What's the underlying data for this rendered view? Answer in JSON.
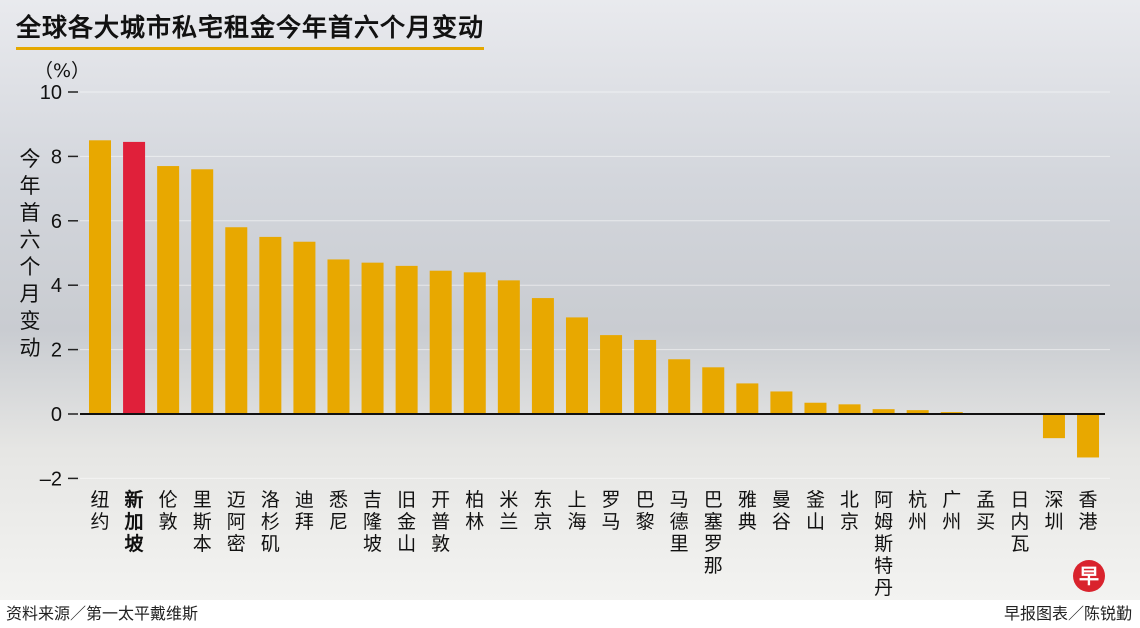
{
  "chart_data": {
    "type": "bar",
    "title": "全球各大城市私宅租金今年首六个月变动",
    "unit": "（%）",
    "ylabel": "今年首六个月变动",
    "xlabel": "",
    "ylim": [
      -2,
      10
    ],
    "yticks": [
      10,
      8,
      6,
      4,
      2,
      0,
      -2
    ],
    "ytick_labels": [
      "10",
      "8",
      "6",
      "4",
      "2",
      "0",
      "–2"
    ],
    "highlight_category": "新加坡",
    "colors": {
      "default": "#e8a800",
      "highlight": "#e0203a"
    },
    "categories": [
      "纽约",
      "新加坡",
      "伦敦",
      "里斯本",
      "迈阿密",
      "洛杉矶",
      "迪拜",
      "悉尼",
      "吉隆坡",
      "旧金山",
      "开普敦",
      "柏林",
      "米兰",
      "东京",
      "上海",
      "罗马",
      "巴黎",
      "马德里",
      "巴塞罗那",
      "雅典",
      "曼谷",
      "釜山",
      "北京",
      "阿姆斯特丹",
      "杭州",
      "广州",
      "孟买",
      "日内瓦",
      "深圳",
      "香港"
    ],
    "values": [
      8.5,
      8.45,
      7.7,
      7.6,
      5.8,
      5.5,
      5.35,
      4.8,
      4.7,
      4.6,
      4.45,
      4.4,
      4.15,
      3.6,
      3.0,
      2.45,
      2.3,
      1.7,
      1.45,
      0.95,
      0.7,
      0.35,
      0.3,
      0.15,
      0.12,
      0.06,
      0.03,
      0.02,
      -0.75,
      -1.35
    ]
  },
  "footer": {
    "source": "资料来源／第一太平戴维斯",
    "credit": "早报图表／陈锐勤",
    "logo_text": "早"
  }
}
